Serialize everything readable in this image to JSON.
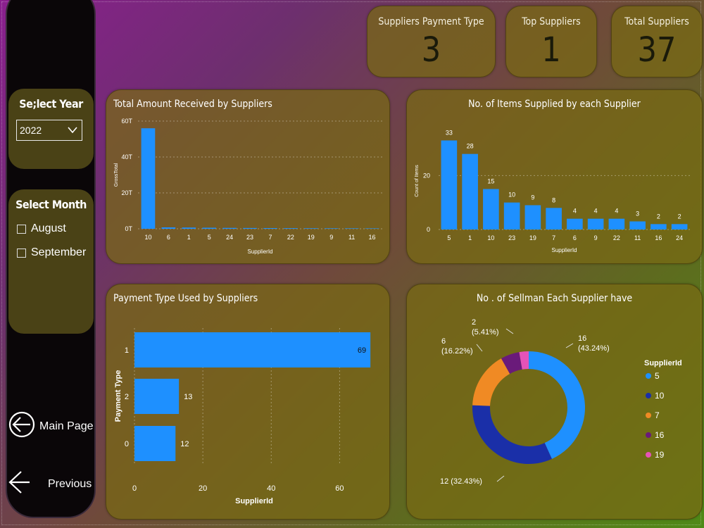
{
  "sidebar": {
    "year_panel": {
      "title": "Se;lect Year",
      "selected": "2022"
    },
    "month_panel": {
      "title": "Select Month",
      "options": [
        "August",
        "September"
      ]
    },
    "nav": {
      "main_page": "Main Page",
      "previous": "Previous"
    }
  },
  "kpis": [
    {
      "title": "Suppliers Payment Type",
      "value": "3"
    },
    {
      "title": "Top Suppliers",
      "value": "1"
    },
    {
      "title": "Total Suppliers",
      "value": "37"
    }
  ],
  "colors": {
    "bar": "#1e90ff",
    "donut": [
      "#1e90ff",
      "#1a2fa8",
      "#f08a24",
      "#6a1a7a",
      "#e553b8"
    ]
  },
  "chart_data": [
    {
      "type": "bar",
      "title": "Total Amount Received by Suppliers",
      "xlabel": "SupplierId",
      "ylabel": "GrossTotal",
      "categories": [
        "10",
        "6",
        "1",
        "5",
        "24",
        "23",
        "7",
        "22",
        "19",
        "9",
        "11",
        "16"
      ],
      "values": [
        56000,
        800,
        700,
        600,
        500,
        450,
        400,
        350,
        300,
        280,
        260,
        240
      ],
      "yticks": [
        "0T",
        "20T",
        "40T",
        "60T"
      ],
      "ylim": [
        0,
        60000
      ]
    },
    {
      "type": "bar",
      "title": "No. of Items Supplied by each Supplier",
      "xlabel": "SupplierId",
      "ylabel": "Count of Items",
      "categories": [
        "5",
        "1",
        "10",
        "23",
        "19",
        "7",
        "6",
        "9",
        "22",
        "11",
        "16",
        "24"
      ],
      "values": [
        33,
        28,
        15,
        10,
        9,
        8,
        4,
        4,
        4,
        3,
        2,
        2
      ],
      "yticks": [
        "0",
        "20"
      ],
      "ylim": [
        0,
        36
      ]
    },
    {
      "type": "bar",
      "orientation": "horizontal",
      "title": "Payment Type Used by Suppliers",
      "xlabel": "SupplierId",
      "ylabel": "Payment Type",
      "categories": [
        "1",
        "2",
        "0"
      ],
      "values": [
        69,
        13,
        12
      ],
      "xticks": [
        "0",
        "20",
        "40",
        "60"
      ],
      "xlim": [
        0,
        70
      ]
    },
    {
      "type": "pie",
      "title": "No . of Sellman Each Supplier have",
      "legend_title": "SupplierId",
      "legend": [
        "5",
        "10",
        "7",
        "16",
        "19"
      ],
      "values": [
        16,
        12,
        6,
        2,
        1
      ],
      "labels": [
        "16\n(43.24%)",
        "12 (32.43%)",
        "6\n(16.22%)",
        "2\n(5.41%)",
        ""
      ]
    }
  ]
}
